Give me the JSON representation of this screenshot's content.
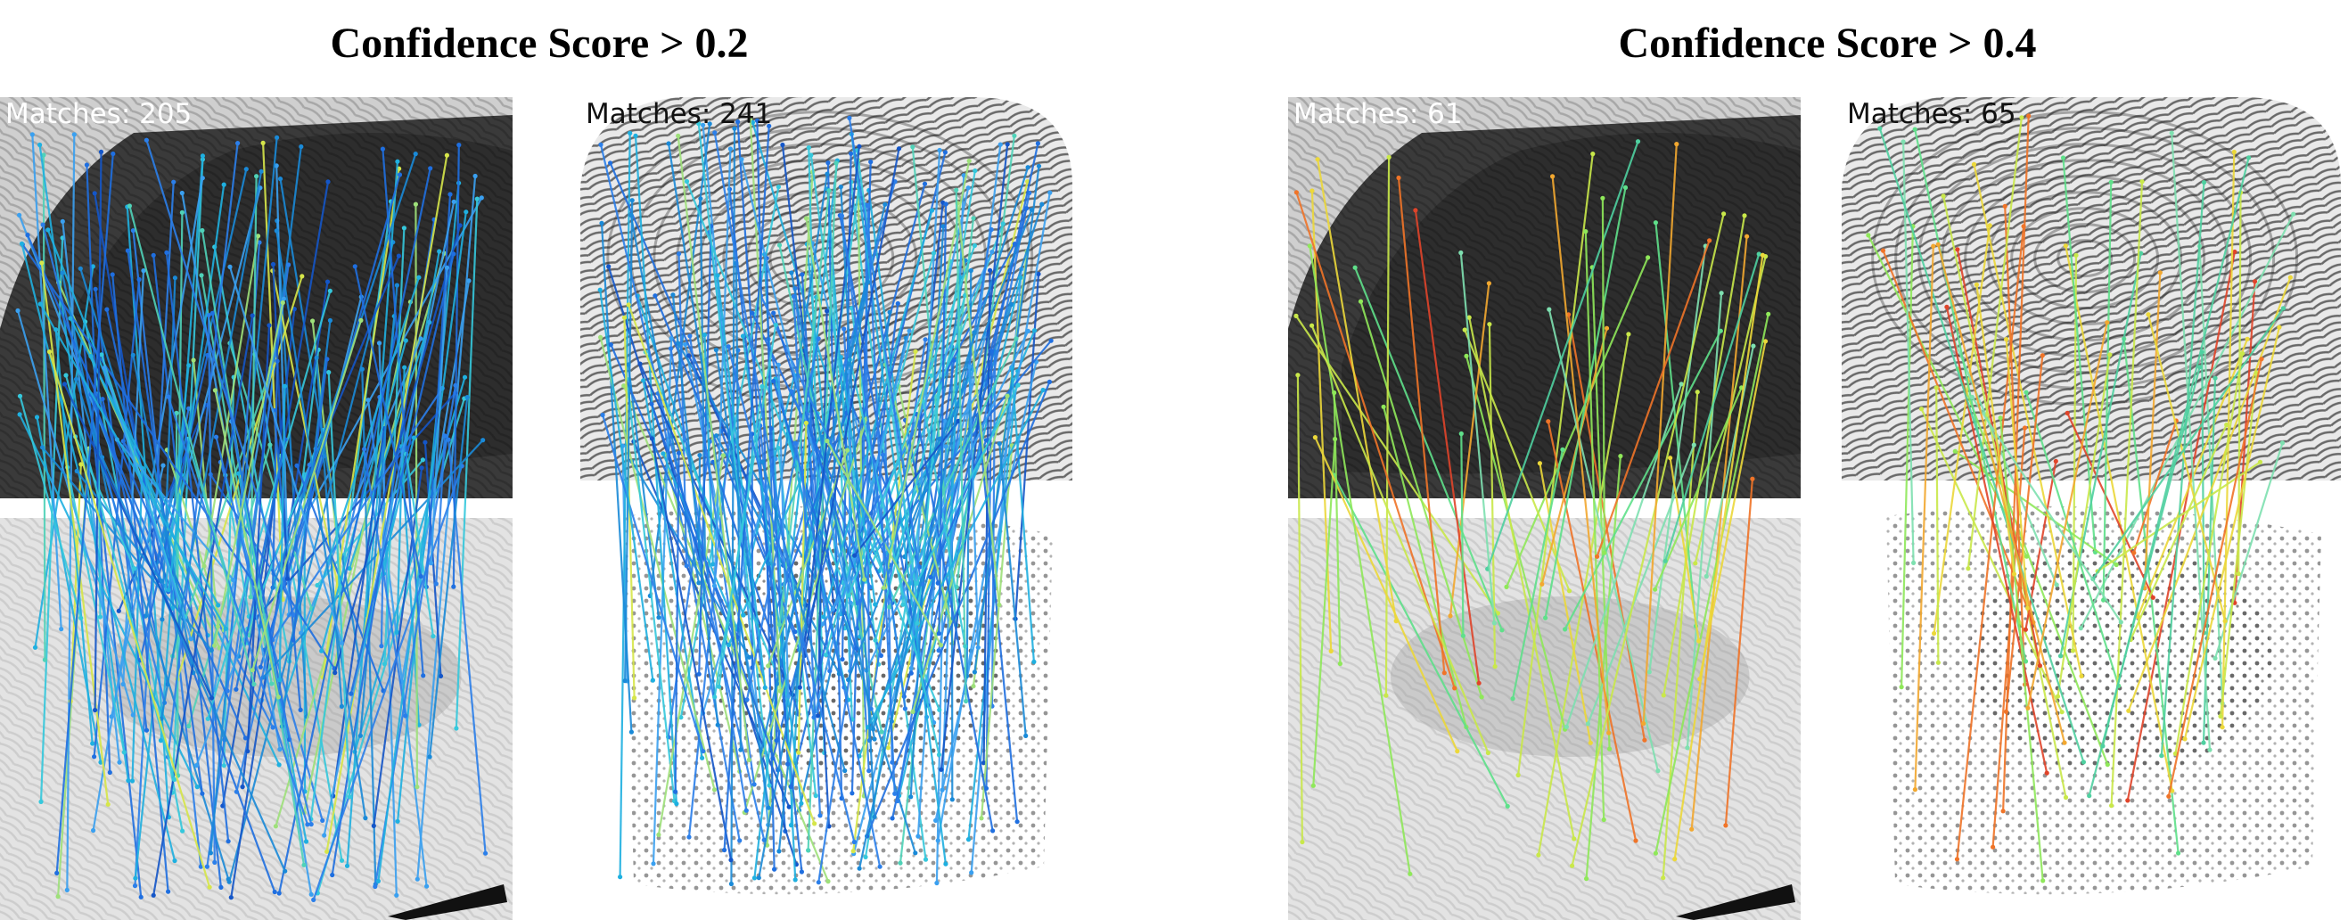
{
  "figure": {
    "titles": [
      "Confidence Score > 0.2",
      "Confidence Score > 0.4"
    ]
  },
  "panels": [
    {
      "matches_label": "Matches: 205",
      "matches": 205,
      "style": "latent",
      "colormap": "cool-blue-dominant"
    },
    {
      "matches_label": "Matches: 241",
      "matches": 241,
      "style": "rolled",
      "colormap": "cool-blue-dominant"
    },
    {
      "matches_label": "Matches: 61",
      "matches": 61,
      "style": "latent",
      "colormap": "warm-green-yellow-orange"
    },
    {
      "matches_label": "Matches: 65",
      "matches": 65,
      "style": "rolled",
      "colormap": "warm-green-yellow-orange"
    }
  ]
}
